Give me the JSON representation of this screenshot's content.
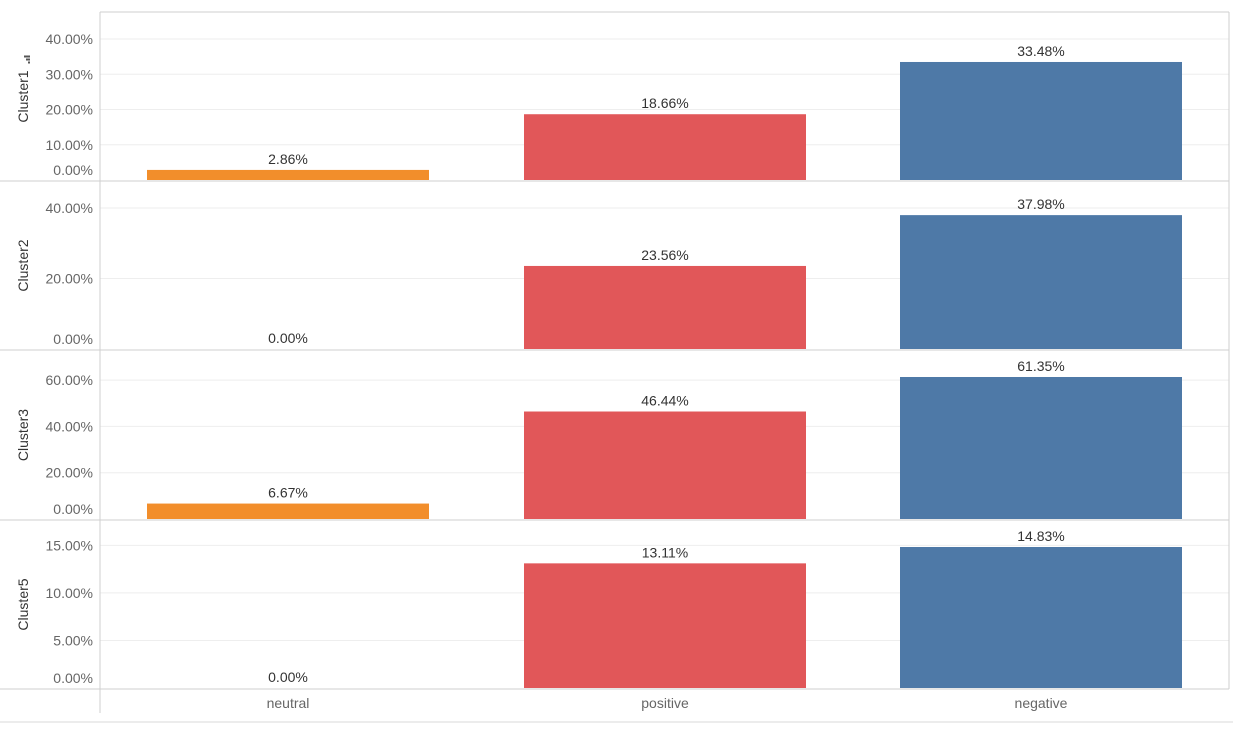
{
  "chart_data": {
    "type": "bar",
    "categories": [
      "neutral",
      "positive",
      "negative"
    ],
    "colors": {
      "neutral": "#f28e2b",
      "positive": "#e15759",
      "negative": "#4e79a7"
    },
    "sort_icon": "sort-descending-icon",
    "panels": [
      {
        "row_label": "Cluster1",
        "values": [
          2.86,
          18.66,
          33.48
        ],
        "data_labels": [
          "2.86%",
          "18.66%",
          "33.48%"
        ],
        "ylim": [
          0,
          40
        ],
        "yticks": [
          0,
          10,
          20,
          30,
          40
        ],
        "ytick_labels": [
          "0.00%",
          "10.00%",
          "20.00%",
          "30.00%",
          "40.00%"
        ],
        "has_sort_icon": true
      },
      {
        "row_label": "Cluster2",
        "values": [
          0,
          23.56,
          37.98
        ],
        "data_labels": [
          "0.00%",
          "23.56%",
          "37.98%"
        ],
        "ylim": [
          0,
          40
        ],
        "yticks": [
          0,
          20,
          40
        ],
        "ytick_labels": [
          "0.00%",
          "20.00%",
          "40.00%"
        ],
        "has_sort_icon": false
      },
      {
        "row_label": "Cluster3",
        "values": [
          6.67,
          46.44,
          61.35
        ],
        "data_labels": [
          "6.67%",
          "46.44%",
          "61.35%"
        ],
        "ylim": [
          0,
          61.35
        ],
        "yticks": [
          0,
          20,
          40,
          60
        ],
        "ytick_labels": [
          "0.00%",
          "20.00%",
          "40.00%",
          "60.00%"
        ],
        "has_sort_icon": false
      },
      {
        "row_label": "Cluster5",
        "values": [
          0,
          13.11,
          14.83
        ],
        "data_labels": [
          "0.00%",
          "13.11%",
          "14.83%"
        ],
        "ylim": [
          0,
          14.83
        ],
        "yticks": [
          0,
          5,
          10,
          15
        ],
        "ytick_labels": [
          "0.00%",
          "5.00%",
          "10.00%",
          "15.00%"
        ],
        "has_sort_icon": false
      }
    ]
  }
}
